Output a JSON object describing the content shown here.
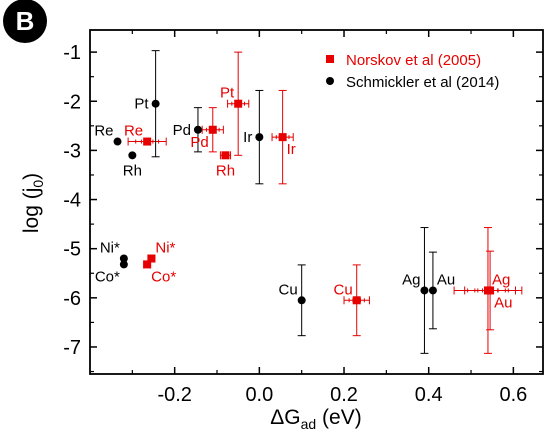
{
  "panel_label": "B",
  "colors": {
    "series1": "#e60000",
    "series2": "#000000"
  },
  "chart_data": {
    "type": "scatter",
    "title": "",
    "xlim": [
      -0.4,
      0.67
    ],
    "ylim": [
      -7.55,
      -0.55
    ],
    "xticks": [
      "-0.2",
      "0.0",
      "0.2",
      "0.4",
      "0.6"
    ],
    "yticks": [
      "-1",
      "-2",
      "-3",
      "-4",
      "-5",
      "-6",
      "-7"
    ],
    "xlabel": {
      "main": "ΔG",
      "sub": "ad",
      "rest": " (eV)"
    },
    "ylabel": {
      "main": "log (j",
      "sub": "0",
      "rest": ")"
    },
    "grid": false,
    "legend_position": "top-right",
    "series": [
      {
        "name": "Norskov et al (2005)",
        "marker": "square",
        "color": "#e60000",
        "points": [
          {
            "label": "Pt",
            "x": -0.05,
            "y": -2.05,
            "xerr": 0.025,
            "yerr": 1.05,
            "label_pos": "above-left"
          },
          {
            "label": "Re",
            "x": -0.265,
            "y": -2.82,
            "xerr": 0.045,
            "yerr": 0,
            "label_pos": "above-left"
          },
          {
            "label": "Pd",
            "x": -0.11,
            "y": -2.58,
            "xerr": 0.025,
            "yerr": 0.45,
            "label_pos": "below-left"
          },
          {
            "label": "Rh",
            "x": -0.08,
            "y": -3.1,
            "xerr": 0.012,
            "yerr": 0,
            "label_pos": "below"
          },
          {
            "label": "Ir",
            "x": 0.055,
            "y": -2.73,
            "xerr": 0.025,
            "yerr": 0.95,
            "label_pos": "below-right"
          },
          {
            "label": "Ni*",
            "x": -0.255,
            "y": -5.2,
            "xerr": 0.008,
            "yerr": 0,
            "label_pos": "above-right"
          },
          {
            "label": "Co*",
            "x": -0.265,
            "y": -5.32,
            "xerr": 0.008,
            "yerr": 0,
            "label_pos": "below-right"
          },
          {
            "label": "Cu",
            "x": 0.23,
            "y": -6.05,
            "xerr": 0.03,
            "yerr": 0.72,
            "label_pos": "above-left"
          },
          {
            "label": "Ag",
            "x": 0.54,
            "y": -5.85,
            "xerr": 0.08,
            "yerr": 1.28,
            "label_pos": "above-right"
          },
          {
            "label": "Au",
            "x": 0.545,
            "y": -5.85,
            "xerr": 0.06,
            "yerr": 0.8,
            "label_pos": "below-right"
          }
        ]
      },
      {
        "name": "Schmickler et al (2014)",
        "marker": "circle",
        "color": "#000000",
        "points": [
          {
            "label": "Pt",
            "x": -0.245,
            "y": -2.05,
            "xerr": 0,
            "yerr": 1.08,
            "label_pos": "left"
          },
          {
            "label": "Re",
            "x": -0.335,
            "y": -2.82,
            "xerr": 0,
            "yerr": 0,
            "label_pos": "above-left"
          },
          {
            "label": "Pd",
            "x": -0.145,
            "y": -2.58,
            "xerr": 0,
            "yerr": 0.45,
            "label_pos": "left"
          },
          {
            "label": "Rh",
            "x": -0.3,
            "y": -3.1,
            "xerr": 0,
            "yerr": 0,
            "label_pos": "below"
          },
          {
            "label": "Ir",
            "x": 0.0,
            "y": -2.73,
            "xerr": 0,
            "yerr": 0.95,
            "label_pos": "left"
          },
          {
            "label": "Ni*",
            "x": -0.32,
            "y": -5.2,
            "xerr": 0,
            "yerr": 0,
            "label_pos": "above-left"
          },
          {
            "label": "Co*",
            "x": -0.32,
            "y": -5.32,
            "xerr": 0,
            "yerr": 0,
            "label_pos": "below-left"
          },
          {
            "label": "Cu",
            "x": 0.1,
            "y": -6.05,
            "xerr": 0,
            "yerr": 0.72,
            "label_pos": "above-left"
          },
          {
            "label": "Ag",
            "x": 0.39,
            "y": -5.85,
            "xerr": 0,
            "yerr": 1.28,
            "label_pos": "above-left"
          },
          {
            "label": "Au",
            "x": 0.41,
            "y": -5.85,
            "xerr": 0,
            "yerr": 0.78,
            "label_pos": "above-right"
          }
        ]
      }
    ]
  }
}
